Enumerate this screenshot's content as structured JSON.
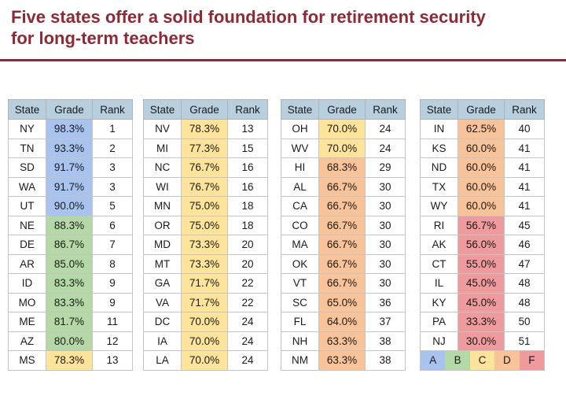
{
  "title": {
    "line1": "Five states offer a solid foundation for retirement security",
    "line2_prefix": "for ",
    "line2_bold": "long-term teachers"
  },
  "headers": {
    "state": "State",
    "grade": "Grade",
    "rank": "Rank"
  },
  "colors": {
    "A": "#a8c4ee",
    "B": "#b5d8a7",
    "C": "#fde49a",
    "D": "#f8c398",
    "F": "#ef9a9c"
  },
  "tables": [
    [
      {
        "state": "NY",
        "grade": "98.3%",
        "rank": "1",
        "letter": "A"
      },
      {
        "state": "TN",
        "grade": "93.3%",
        "rank": "2",
        "letter": "A"
      },
      {
        "state": "SD",
        "grade": "91.7%",
        "rank": "3",
        "letter": "A"
      },
      {
        "state": "WA",
        "grade": "91.7%",
        "rank": "3",
        "letter": "A"
      },
      {
        "state": "UT",
        "grade": "90.0%",
        "rank": "5",
        "letter": "A"
      },
      {
        "state": "NE",
        "grade": "88.3%",
        "rank": "6",
        "letter": "B"
      },
      {
        "state": "DE",
        "grade": "86.7%",
        "rank": "7",
        "letter": "B"
      },
      {
        "state": "AR",
        "grade": "85.0%",
        "rank": "8",
        "letter": "B"
      },
      {
        "state": "ID",
        "grade": "83.3%",
        "rank": "9",
        "letter": "B"
      },
      {
        "state": "MO",
        "grade": "83.3%",
        "rank": "9",
        "letter": "B"
      },
      {
        "state": "ME",
        "grade": "81.7%",
        "rank": "11",
        "letter": "B"
      },
      {
        "state": "AZ",
        "grade": "80.0%",
        "rank": "12",
        "letter": "B"
      },
      {
        "state": "MS",
        "grade": "78.3%",
        "rank": "13",
        "letter": "C"
      }
    ],
    [
      {
        "state": "NV",
        "grade": "78.3%",
        "rank": "13",
        "letter": "C"
      },
      {
        "state": "MI",
        "grade": "77.3%",
        "rank": "15",
        "letter": "C"
      },
      {
        "state": "NC",
        "grade": "76.7%",
        "rank": "16",
        "letter": "C"
      },
      {
        "state": "WI",
        "grade": "76.7%",
        "rank": "16",
        "letter": "C"
      },
      {
        "state": "MN",
        "grade": "75.0%",
        "rank": "18",
        "letter": "C"
      },
      {
        "state": "OR",
        "grade": "75.0%",
        "rank": "18",
        "letter": "C"
      },
      {
        "state": "MD",
        "grade": "73.3%",
        "rank": "20",
        "letter": "C"
      },
      {
        "state": "MT",
        "grade": "73.3%",
        "rank": "20",
        "letter": "C"
      },
      {
        "state": "GA",
        "grade": "71.7%",
        "rank": "22",
        "letter": "C"
      },
      {
        "state": "VA",
        "grade": "71.7%",
        "rank": "22",
        "letter": "C"
      },
      {
        "state": "DC",
        "grade": "70.0%",
        "rank": "24",
        "letter": "C"
      },
      {
        "state": "IA",
        "grade": "70.0%",
        "rank": "24",
        "letter": "C"
      },
      {
        "state": "LA",
        "grade": "70.0%",
        "rank": "24",
        "letter": "C"
      }
    ],
    [
      {
        "state": "OH",
        "grade": "70.0%",
        "rank": "24",
        "letter": "C"
      },
      {
        "state": "WV",
        "grade": "70.0%",
        "rank": "24",
        "letter": "C"
      },
      {
        "state": "HI",
        "grade": "68.3%",
        "rank": "29",
        "letter": "D"
      },
      {
        "state": "AL",
        "grade": "66.7%",
        "rank": "30",
        "letter": "D"
      },
      {
        "state": "CA",
        "grade": "66.7%",
        "rank": "30",
        "letter": "D"
      },
      {
        "state": "CO",
        "grade": "66.7%",
        "rank": "30",
        "letter": "D"
      },
      {
        "state": "MA",
        "grade": "66.7%",
        "rank": "30",
        "letter": "D"
      },
      {
        "state": "OK",
        "grade": "66.7%",
        "rank": "30",
        "letter": "D"
      },
      {
        "state": "VT",
        "grade": "66.7%",
        "rank": "30",
        "letter": "D"
      },
      {
        "state": "SC",
        "grade": "65.0%",
        "rank": "36",
        "letter": "D"
      },
      {
        "state": "FL",
        "grade": "64.0%",
        "rank": "37",
        "letter": "D"
      },
      {
        "state": "NH",
        "grade": "63.3%",
        "rank": "38",
        "letter": "D"
      },
      {
        "state": "NM",
        "grade": "63.3%",
        "rank": "38",
        "letter": "D"
      }
    ],
    [
      {
        "state": "IN",
        "grade": "62.5%",
        "rank": "40",
        "letter": "D"
      },
      {
        "state": "KS",
        "grade": "60.0%",
        "rank": "41",
        "letter": "D"
      },
      {
        "state": "ND",
        "grade": "60.0%",
        "rank": "41",
        "letter": "D"
      },
      {
        "state": "TX",
        "grade": "60.0%",
        "rank": "41",
        "letter": "D"
      },
      {
        "state": "WY",
        "grade": "60.0%",
        "rank": "41",
        "letter": "D"
      },
      {
        "state": "RI",
        "grade": "56.7%",
        "rank": "45",
        "letter": "F"
      },
      {
        "state": "AK",
        "grade": "56.0%",
        "rank": "46",
        "letter": "F"
      },
      {
        "state": "CT",
        "grade": "55.0%",
        "rank": "47",
        "letter": "F"
      },
      {
        "state": "IL",
        "grade": "45.0%",
        "rank": "48",
        "letter": "F"
      },
      {
        "state": "KY",
        "grade": "45.0%",
        "rank": "48",
        "letter": "F"
      },
      {
        "state": "PA",
        "grade": "33.3%",
        "rank": "50",
        "letter": "F"
      },
      {
        "state": "NJ",
        "grade": "30.0%",
        "rank": "51",
        "letter": "F"
      }
    ]
  ],
  "legend": [
    {
      "label": "A",
      "color": "#a8c4ee"
    },
    {
      "label": "B",
      "color": "#b5d8a7"
    },
    {
      "label": "C",
      "color": "#fde49a"
    },
    {
      "label": "D",
      "color": "#f8c398"
    },
    {
      "label": "F",
      "color": "#ef9a9c"
    }
  ]
}
